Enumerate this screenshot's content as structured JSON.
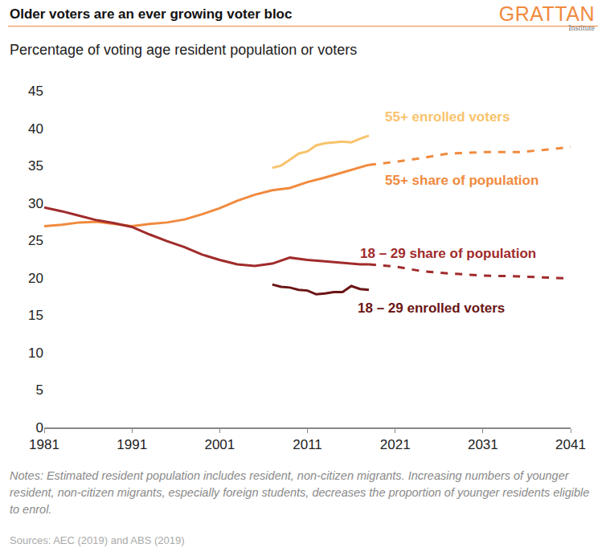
{
  "chart_data": {
    "type": "line",
    "title": "Older voters are an ever growing voter bloc",
    "subtitle": "Percentage of voting age resident population or voters",
    "notes": "Notes: Estimated resident population includes resident, non-citizen migrants. Increasing numbers of younger resident, non-citizen migrants, especially foreign students, decreases the proportion of younger residents eligible to enrol.",
    "source": "Sources: AEC (2019) and ABS (2019)",
    "logo": {
      "text": "GRATTAN",
      "subtext": "Institute"
    },
    "xlim": [
      1981,
      2041
    ],
    "xticks": [
      1981,
      1991,
      2001,
      2011,
      2021,
      2031,
      2041
    ],
    "ylim": [
      0,
      45
    ],
    "yticks": [
      0,
      5,
      10,
      15,
      20,
      25,
      30,
      35,
      40,
      45
    ],
    "grid": false,
    "series": [
      {
        "name": "55+ share of population",
        "color": "#f08a3e",
        "line_style": "solid",
        "x": [
          1981,
          1983,
          1985,
          1987,
          1989,
          1991,
          1993,
          1995,
          1997,
          1999,
          2001,
          2003,
          2005,
          2007,
          2009,
          2011,
          2013,
          2015,
          2017,
          2018
        ],
        "values": [
          26.9,
          27.1,
          27.4,
          27.5,
          27.2,
          26.9,
          27.2,
          27.4,
          27.8,
          28.5,
          29.3,
          30.3,
          31.1,
          31.7,
          32.0,
          32.8,
          33.4,
          34.1,
          34.8,
          35.1
        ]
      },
      {
        "name": "55+ share of population",
        "color": "#f08a3e",
        "line_style": "dashed",
        "x": [
          2018,
          2021,
          2024,
          2027,
          2031,
          2035,
          2038,
          2041
        ],
        "values": [
          35.1,
          35.5,
          36.0,
          36.6,
          36.8,
          36.8,
          37.1,
          37.5
        ]
      },
      {
        "name": "55+ enrolled voters",
        "color": "#f8c36b",
        "line_style": "solid",
        "x": [
          2007,
          2008,
          2009,
          2010,
          2011,
          2012,
          2013,
          2014,
          2015,
          2016,
          2017,
          2018
        ],
        "values": [
          34.7,
          35.0,
          35.8,
          36.6,
          36.9,
          37.7,
          38.0,
          38.1,
          38.2,
          38.1,
          38.6,
          39.0
        ]
      },
      {
        "name": "18 – 29 share of population",
        "color": "#a02b2b",
        "line_style": "solid",
        "x": [
          1981,
          1983,
          1985,
          1987,
          1989,
          1991,
          1993,
          1995,
          1997,
          1999,
          2001,
          2003,
          2005,
          2007,
          2009,
          2011,
          2013,
          2015,
          2017,
          2018
        ],
        "values": [
          29.4,
          28.9,
          28.3,
          27.7,
          27.3,
          26.8,
          25.8,
          24.9,
          24.1,
          23.1,
          22.4,
          21.8,
          21.6,
          21.9,
          22.7,
          22.4,
          22.2,
          22.0,
          21.8,
          21.8
        ]
      },
      {
        "name": "18 – 29 share of population",
        "color": "#a02b2b",
        "line_style": "dashed",
        "x": [
          2018,
          2021,
          2024,
          2027,
          2031,
          2035,
          2041
        ],
        "values": [
          21.8,
          21.5,
          20.9,
          20.6,
          20.3,
          20.2,
          19.9
        ]
      },
      {
        "name": "18 – 29 enrolled voters",
        "color": "#6b1515",
        "line_style": "solid",
        "x": [
          2007,
          2008,
          2009,
          2010,
          2011,
          2012,
          2013,
          2014,
          2015,
          2016,
          2017,
          2018
        ],
        "values": [
          19.1,
          18.8,
          18.7,
          18.4,
          18.3,
          17.8,
          17.9,
          18.1,
          18.1,
          18.9,
          18.5,
          18.4
        ]
      }
    ]
  }
}
